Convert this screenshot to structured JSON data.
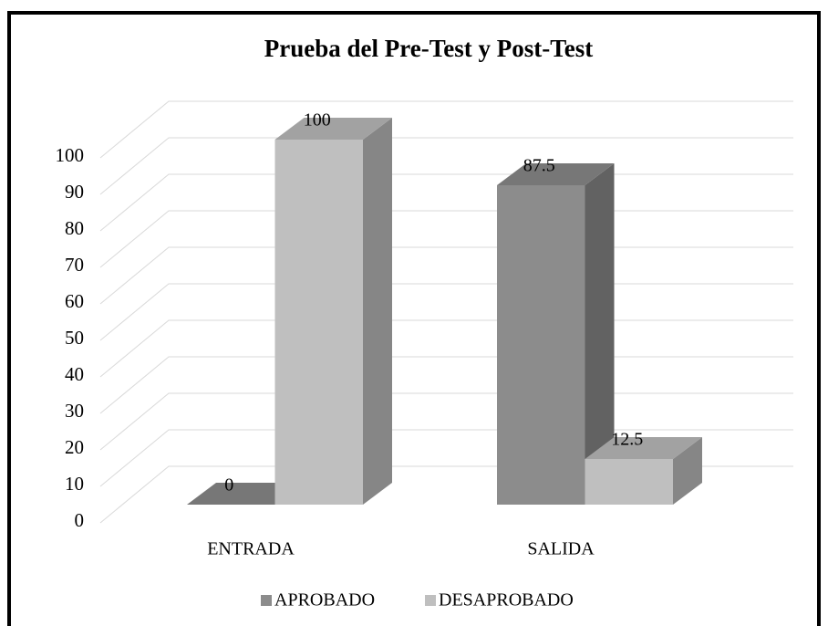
{
  "chart_data": {
    "type": "bar3d",
    "title": "Prueba del Pre-Test y Post-Test",
    "categories": [
      "ENTRADA",
      "SALIDA"
    ],
    "series": [
      {
        "name": "APROBADO",
        "color": "#8c8c8c",
        "values": [
          0,
          87.5
        ]
      },
      {
        "name": "DESAPROBADO",
        "color": "#bfbfbf",
        "values": [
          100,
          12.5
        ]
      }
    ],
    "ylim": [
      0,
      100
    ],
    "yticks": [
      0,
      10,
      20,
      30,
      40,
      50,
      60,
      70,
      80,
      90,
      100
    ],
    "grid": true,
    "legend": "bottom"
  }
}
